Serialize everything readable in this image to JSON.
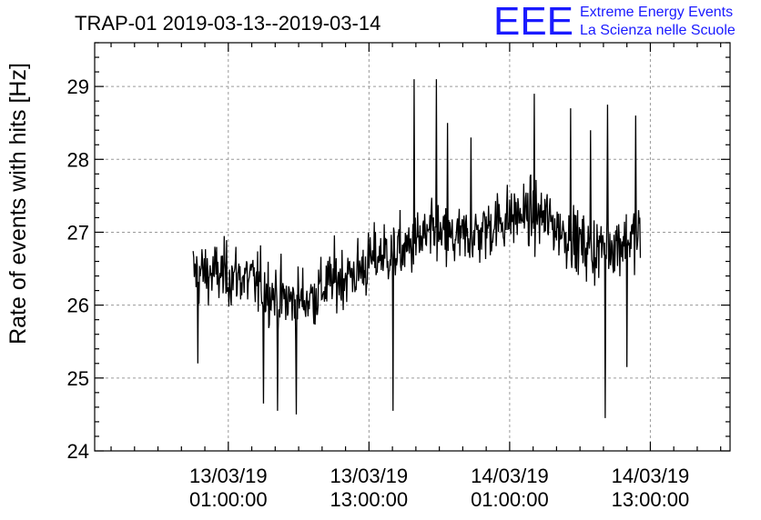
{
  "chart_data": {
    "type": "line",
    "title": "TRAP-01 2019-03-13--2019-03-14",
    "ylabel": "Rate of events with hits [Hz]",
    "xlabel": "",
    "ylim": [
      24,
      29.6
    ],
    "y_ticks": [
      24,
      25,
      26,
      27,
      28,
      29
    ],
    "y_tick_labels": [
      "24",
      "25",
      "26",
      "27",
      "28",
      "29"
    ],
    "x_unit": "hours since 13/03/19 00:00:00",
    "xlim": [
      -10.4,
      43.8
    ],
    "x_ticks": [
      1,
      13,
      25,
      37
    ],
    "x_tick_labels": [
      [
        "13/03/19",
        "01:00:00"
      ],
      [
        "13/03/19",
        "13:00:00"
      ],
      [
        "14/03/19",
        "01:00:00"
      ],
      [
        "14/03/19",
        "13:00:00"
      ]
    ],
    "grid": true,
    "series": [
      {
        "color": "#000000",
        "x_start": -2,
        "x_end": 36.2,
        "sample_interval_hours": 0.05,
        "trend": [
          [
            -2,
            26.45
          ],
          [
            2,
            26.4
          ],
          [
            4,
            26.25
          ],
          [
            6,
            26.05
          ],
          [
            8,
            26.1
          ],
          [
            10,
            26.35
          ],
          [
            12,
            26.45
          ],
          [
            14,
            26.7
          ],
          [
            16,
            26.75
          ],
          [
            18,
            26.95
          ],
          [
            20,
            26.9
          ],
          [
            22,
            26.95
          ],
          [
            24,
            27.15
          ],
          [
            26,
            27.25
          ],
          [
            28,
            27.2
          ],
          [
            30,
            26.95
          ],
          [
            32,
            26.75
          ],
          [
            34,
            26.85
          ],
          [
            36.2,
            26.95
          ]
        ],
        "noise_amplitude": 0.5,
        "spikes": [
          [
            16.85,
            29.1
          ],
          [
            18.75,
            29.1
          ],
          [
            19.7,
            28.5
          ],
          [
            21.7,
            28.3
          ],
          [
            27.1,
            28.9
          ],
          [
            30.2,
            28.7
          ],
          [
            33.35,
            28.75
          ],
          [
            35.75,
            28.6
          ],
          [
            31.9,
            28.4
          ],
          [
            6.8,
            24.5
          ],
          [
            5.2,
            24.55
          ],
          [
            4.0,
            24.65
          ],
          [
            15.05,
            24.55
          ],
          [
            33.15,
            24.45
          ],
          [
            35.0,
            25.15
          ],
          [
            -1.6,
            25.2
          ]
        ]
      }
    ]
  },
  "logo": {
    "mark": "EEE",
    "line1": "Extreme Energy Events",
    "line2": "La Scienza nelle Scuole",
    "color": "#1a1aff"
  }
}
